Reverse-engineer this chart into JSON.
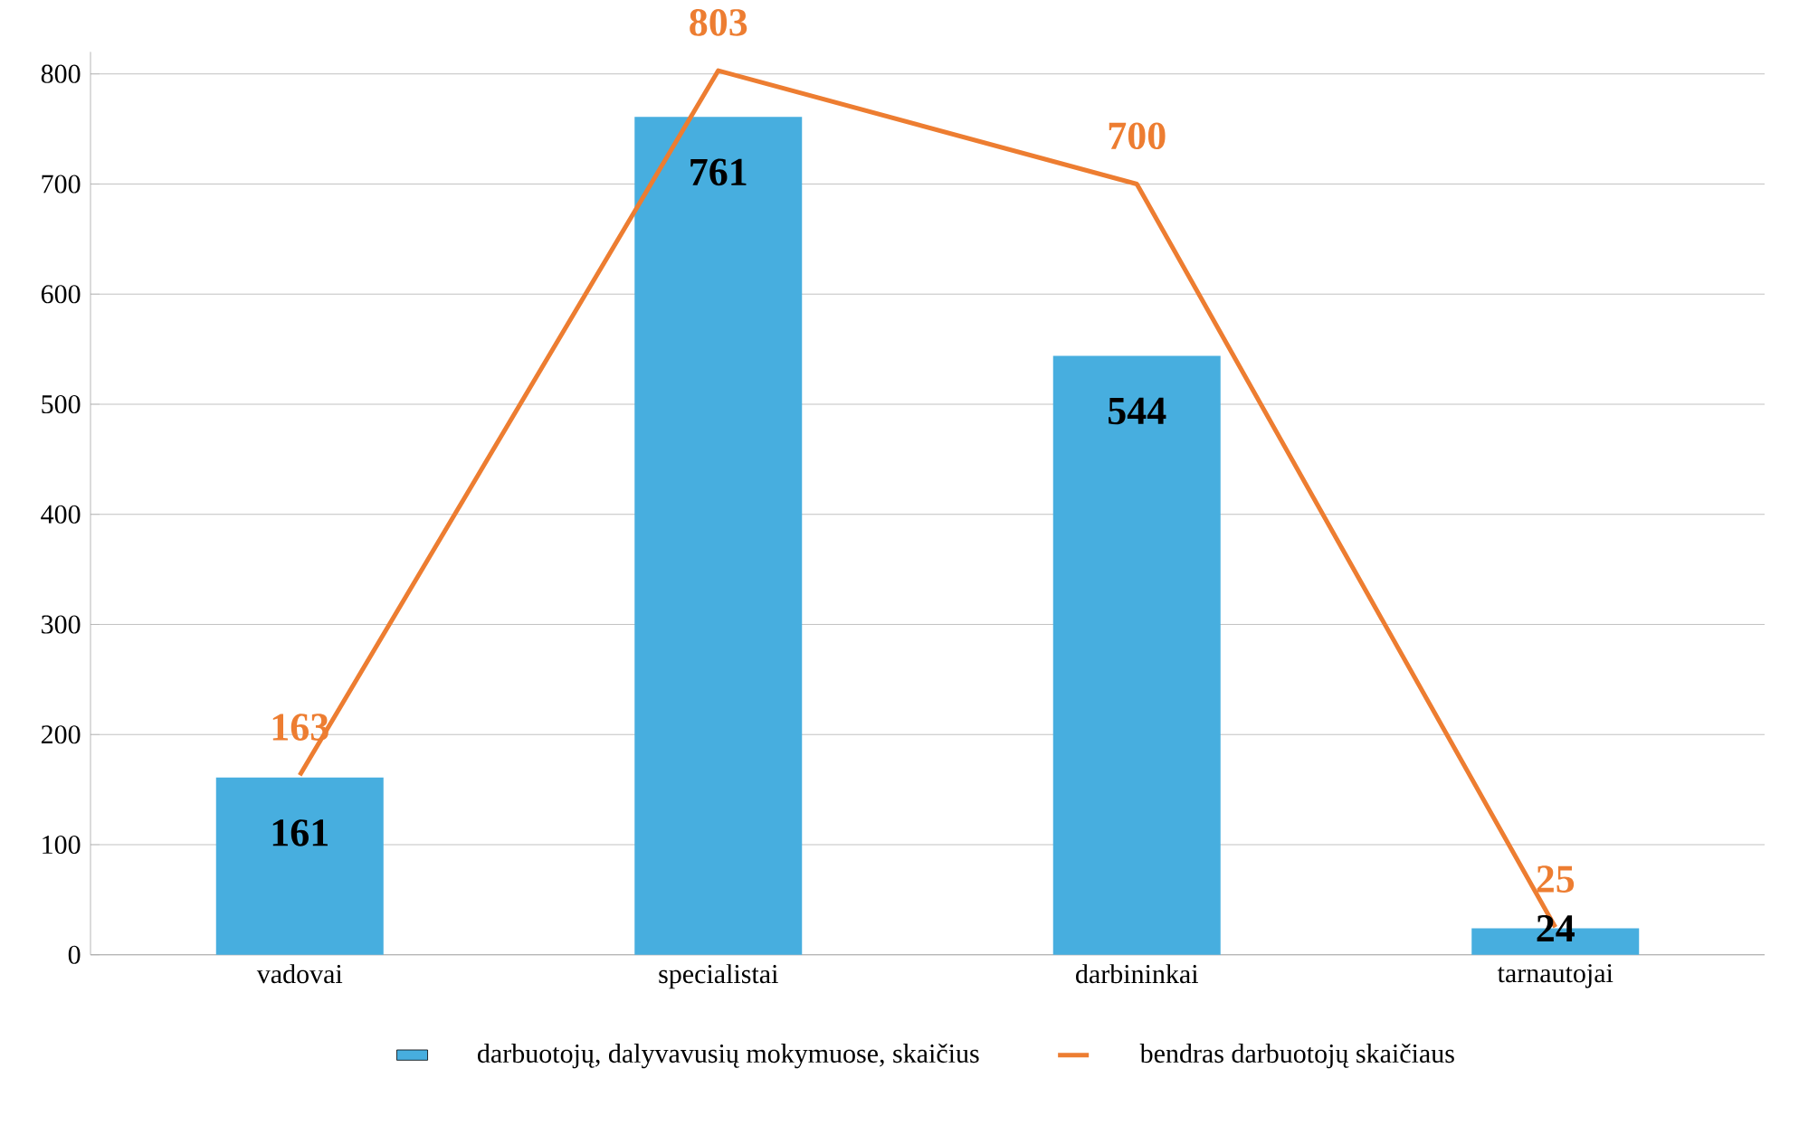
{
  "chart_data": {
    "type": "bar",
    "categories": [
      "vadovai",
      "specialistai",
      "darbininkai",
      "tarnautojai"
    ],
    "series": [
      {
        "name": "darbuotojų, dalyvavusių mokymuose, skaičius",
        "color": "#47aedf",
        "values": [
          161,
          761,
          544,
          24
        ]
      },
      {
        "name": "bendras darbuotojų skaičiaus",
        "type": "line",
        "color": "#ed7d31",
        "values": [
          163,
          803,
          700,
          25
        ]
      }
    ],
    "ylim": [
      0,
      820
    ],
    "yticks": [
      0,
      100,
      200,
      300,
      400,
      500,
      600,
      700,
      800
    ],
    "grid": "y",
    "legend": "bottom",
    "data_labels": true
  }
}
